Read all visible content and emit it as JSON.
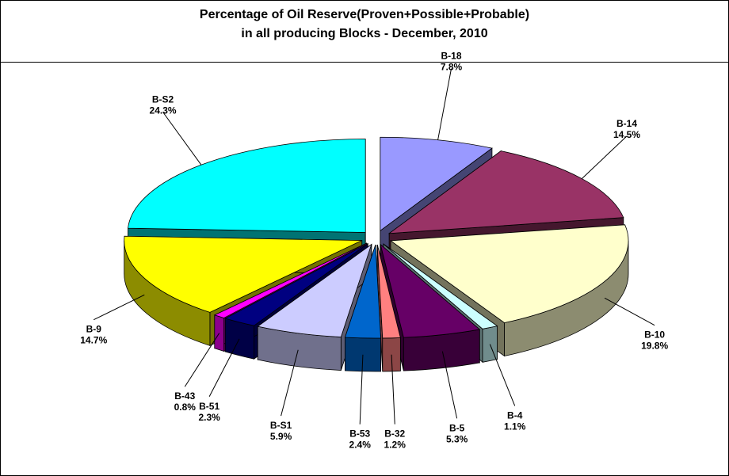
{
  "chart_data": {
    "type": "pie",
    "title": "Percentage of Oil Reserve(Proven+Possible+Probable)",
    "subtitle": "in all producing Blocks - December, 2010",
    "slices": [
      {
        "label": "B-18",
        "value": 7.8,
        "display": "7.8%",
        "color": "#9999ff"
      },
      {
        "label": "B-14",
        "value": 14.5,
        "display": "14.5%",
        "color": "#993366"
      },
      {
        "label": "B-10",
        "value": 19.8,
        "display": "19.8%",
        "color": "#ffffcc"
      },
      {
        "label": "B-4",
        "value": 1.1,
        "display": "1.1%",
        "color": "#ccffff"
      },
      {
        "label": "B-5",
        "value": 5.3,
        "display": "5.3%",
        "color": "#660066"
      },
      {
        "label": "B-32",
        "value": 1.2,
        "display": "1.2%",
        "color": "#ff8080"
      },
      {
        "label": "B-53",
        "value": 2.4,
        "display": "2.4%",
        "color": "#0066cc"
      },
      {
        "label": "B-S1",
        "value": 5.9,
        "display": "5.9%",
        "color": "#ccccff"
      },
      {
        "label": "B-51",
        "value": 2.3,
        "display": "2.3%",
        "color": "#000080"
      },
      {
        "label": "B-43",
        "value": 0.8,
        "display": "0.8%",
        "color": "#ff00ff"
      },
      {
        "label": "B-9",
        "value": 14.7,
        "display": "14.7%",
        "color": "#ffff00"
      },
      {
        "label": "B-S2",
        "value": 24.3,
        "display": "24.3%",
        "color": "#00ffff"
      }
    ]
  }
}
